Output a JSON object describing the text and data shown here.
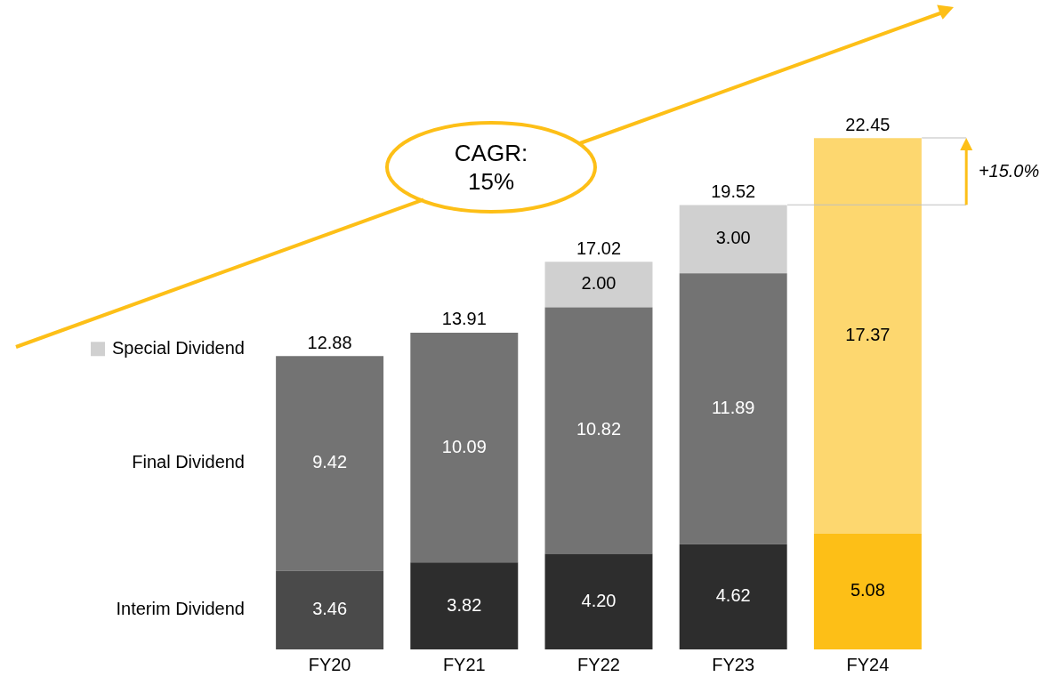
{
  "chart_data": {
    "type": "bar",
    "stacked": true,
    "categories": [
      "FY20",
      "FY21",
      "FY22",
      "FY23",
      "FY24"
    ],
    "series": [
      {
        "name": "Interim Dividend",
        "colors": [
          "#4a4a4a",
          "#2d2d2d",
          "#2d2d2d",
          "#2d2d2d",
          "#fdbf17"
        ],
        "values": [
          3.46,
          3.82,
          4.2,
          4.62,
          5.08
        ],
        "value_labels": [
          "3.46",
          "3.82",
          "4.20",
          "4.62",
          "5.08"
        ]
      },
      {
        "name": "Final Dividend",
        "colors": [
          "#737373",
          "#737373",
          "#737373",
          "#737373",
          "#fdd76f"
        ],
        "values": [
          9.42,
          10.09,
          10.82,
          11.89,
          17.37
        ],
        "value_labels": [
          "9.42",
          "10.09",
          "10.82",
          "11.89",
          "17.37"
        ]
      },
      {
        "name": "Special Dividend",
        "colors": [
          "#d0d0d0",
          "#d0d0d0",
          "#d0d0d0",
          "#d0d0d0",
          "#d0d0d0"
        ],
        "values": [
          null,
          null,
          2.0,
          3.0,
          null
        ],
        "value_labels": [
          null,
          null,
          "2.00",
          "3.00",
          null
        ]
      }
    ],
    "totals": [
      "12.88",
      "13.91",
      "17.02",
      "19.52",
      "22.45"
    ],
    "annotations": [
      "CAGR: 15%",
      "+15.0%"
    ],
    "grid": false,
    "legend": "left"
  }
}
